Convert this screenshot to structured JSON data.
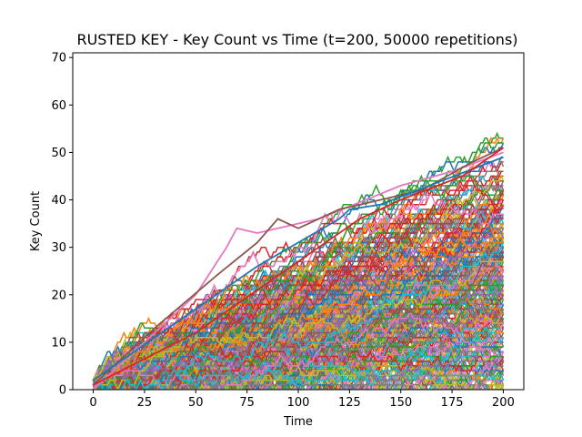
{
  "chart_data": {
    "type": "line",
    "title": "RUSTED KEY - Key Count vs Time (t=200, 50000 repetitions)",
    "xlabel": "Time",
    "ylabel": "Key Count",
    "xlim": [
      -10,
      210
    ],
    "ylim": [
      0,
      71
    ],
    "xticks": [
      "0",
      "25",
      "50",
      "75",
      "100",
      "125",
      "150",
      "175",
      "200"
    ],
    "yticks": [
      "0",
      "10",
      "20",
      "30",
      "40",
      "50",
      "60",
      "70"
    ],
    "grid": false,
    "legend": "none",
    "palette": [
      "#1f77b4",
      "#ff7f0e",
      "#2ca02c",
      "#d62728",
      "#9467bd",
      "#8c564b",
      "#e377c2",
      "#7f7f7f",
      "#bcbd22",
      "#17becf"
    ],
    "series_count_drawn": 400,
    "x": [
      0,
      200
    ],
    "endpoint_max": 51,
    "highlighted_paths": [
      {
        "color": "#e377c2",
        "points": [
          [
            0,
            0
          ],
          [
            25,
            10
          ],
          [
            50,
            20
          ],
          [
            65,
            30
          ],
          [
            70,
            34
          ],
          [
            80,
            33
          ],
          [
            90,
            34
          ],
          [
            110,
            36
          ],
          [
            150,
            43
          ],
          [
            175,
            46
          ],
          [
            200,
            50
          ]
        ]
      },
      {
        "color": "#8c564b",
        "points": [
          [
            0,
            1
          ],
          [
            30,
            13
          ],
          [
            60,
            24
          ],
          [
            80,
            31
          ],
          [
            90,
            36
          ],
          [
            100,
            34
          ],
          [
            120,
            38
          ],
          [
            160,
            42
          ],
          [
            185,
            48
          ],
          [
            200,
            51
          ]
        ]
      },
      {
        "color": "#1f77b4",
        "points": [
          [
            0,
            2
          ],
          [
            40,
            14
          ],
          [
            80,
            26
          ],
          [
            120,
            36
          ],
          [
            125,
            38
          ],
          [
            140,
            39
          ],
          [
            170,
            44
          ],
          [
            200,
            49
          ]
        ]
      },
      {
        "color": "#d62728",
        "points": [
          [
            0,
            1
          ],
          [
            50,
            12
          ],
          [
            90,
            24
          ],
          [
            130,
            36
          ],
          [
            150,
            40
          ],
          [
            180,
            45
          ],
          [
            200,
            51
          ]
        ]
      }
    ]
  }
}
